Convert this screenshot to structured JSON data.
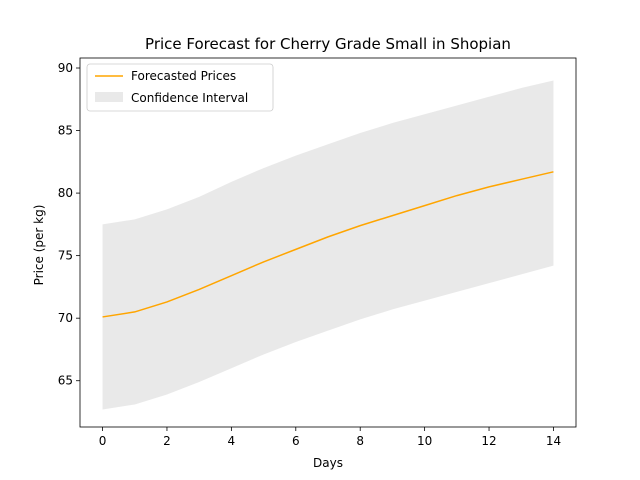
{
  "chart_data": {
    "type": "line",
    "title": "Price Forecast for Cherry Grade Small in Shopian",
    "xlabel": "Days",
    "ylabel": "Price (per kg)",
    "xlim": [
      -0.7,
      14.7
    ],
    "ylim": [
      61.3,
      90.8
    ],
    "xticks": [
      0,
      2,
      4,
      6,
      8,
      10,
      12,
      14
    ],
    "yticks": [
      65,
      70,
      75,
      80,
      85,
      90
    ],
    "legend_position": "upper-left",
    "grid": false,
    "x": [
      0,
      1,
      2,
      3,
      4,
      5,
      6,
      7,
      8,
      9,
      10,
      11,
      12,
      13,
      14
    ],
    "series": [
      {
        "name": "Forecasted Prices",
        "type": "line",
        "color": "#ffa500",
        "values": [
          70.1,
          70.5,
          71.3,
          72.3,
          73.4,
          74.5,
          75.5,
          76.5,
          77.4,
          78.2,
          79.0,
          79.8,
          80.5,
          81.1,
          81.7
        ]
      },
      {
        "name": "Confidence Interval",
        "type": "band",
        "color": "#d3d3d3",
        "lower": [
          62.7,
          63.1,
          63.9,
          64.9,
          66.0,
          67.1,
          68.1,
          69.0,
          69.9,
          70.7,
          71.4,
          72.1,
          72.8,
          73.5,
          74.2
        ],
        "upper": [
          77.5,
          77.9,
          78.7,
          79.7,
          80.9,
          82.0,
          83.0,
          83.9,
          84.8,
          85.6,
          86.3,
          87.0,
          87.7,
          88.4,
          89.0
        ]
      }
    ]
  }
}
